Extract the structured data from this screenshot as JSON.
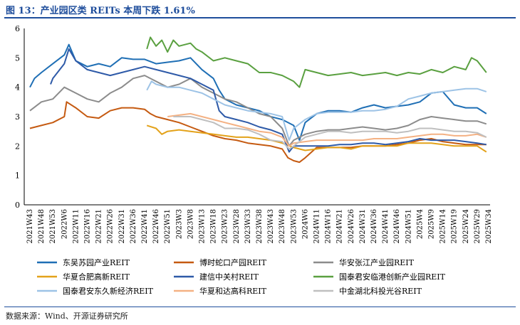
{
  "figure_label": "图 13：产业园区类 REITs 本周下跌 1.61%",
  "source_note": "数据来源：Wind、开源证券研究所",
  "chart_data": {
    "type": "line",
    "title": "图 13：产业园区类 REITs 本周下跌 1.61%",
    "xlabel": "",
    "ylabel": "",
    "ylim": [
      0,
      6
    ],
    "yticks": [
      0,
      1,
      2,
      3,
      4,
      5,
      6
    ],
    "grid": false,
    "legend_position": "bottom",
    "x_ticks": [
      "2021W43",
      "2021W48",
      "2021W53",
      "2022W6",
      "2022W11",
      "2022W16",
      "2022W21",
      "2022W26",
      "2022W31",
      "2022W36",
      "2022W41",
      "2022W46",
      "2022W51",
      "2023W3",
      "2023W8",
      "2023W13",
      "2023W18",
      "2023W23",
      "2023W28",
      "2023W33",
      "2023W38",
      "2023W43",
      "2023W48",
      "2023W53",
      "2024W6",
      "2024W11",
      "2024W16",
      "2024W21",
      "2024W26",
      "2024W31",
      "2024W36",
      "2024W41",
      "2024W46",
      "2024W51",
      "2025W4",
      "2025W9",
      "2025W14",
      "2025W19",
      "2025W24",
      "2025W29",
      "2025W34"
    ],
    "series": [
      {
        "name": "东吴苏园产业REIT",
        "color": "#1f6fb5",
        "x": [
          0,
          0.4,
          1,
          2,
          3,
          3.4,
          4,
          5,
          6,
          7,
          8,
          9,
          10,
          11,
          12,
          13,
          14,
          15,
          16,
          16.5,
          17,
          18,
          19,
          20,
          21,
          22,
          23,
          23.5,
          24,
          25,
          26,
          27,
          28,
          29,
          30,
          31,
          32,
          33,
          34,
          35,
          36,
          37,
          38,
          39,
          39.8
        ],
        "y": [
          4.0,
          4.3,
          4.5,
          4.8,
          5.1,
          5.45,
          4.9,
          4.7,
          4.8,
          4.7,
          5.0,
          4.95,
          4.95,
          4.8,
          4.85,
          4.9,
          5.0,
          4.6,
          4.3,
          3.9,
          3.6,
          3.4,
          3.3,
          3.2,
          3.0,
          2.9,
          2.7,
          2.2,
          2.8,
          3.1,
          3.2,
          3.2,
          3.15,
          3.3,
          3.4,
          3.3,
          3.35,
          3.4,
          3.5,
          3.8,
          3.85,
          3.4,
          3.3,
          3.3,
          3.1
        ]
      },
      {
        "name": "博时蛇口产园REIT",
        "color": "#c55a11",
        "x": [
          0,
          1,
          2,
          3,
          3.2,
          4,
          5,
          6,
          7,
          8,
          9,
          10,
          10.5,
          11,
          12,
          13,
          14,
          15,
          16,
          17,
          18,
          19,
          20,
          21,
          22,
          22.5,
          23,
          23.5,
          24,
          25,
          26,
          27,
          28,
          29,
          30,
          31,
          32,
          33,
          34,
          35,
          36,
          37,
          38,
          39,
          39.8
        ],
        "y": [
          2.6,
          2.7,
          2.8,
          3.0,
          3.5,
          3.3,
          3.0,
          2.95,
          3.2,
          3.3,
          3.3,
          3.25,
          3.1,
          3.0,
          2.9,
          2.8,
          2.65,
          2.5,
          2.35,
          2.25,
          2.2,
          2.1,
          2.05,
          2.0,
          1.9,
          1.6,
          1.5,
          1.45,
          1.6,
          1.95,
          1.95,
          1.95,
          1.95,
          2.0,
          2.0,
          2.0,
          2.05,
          2.1,
          2.2,
          2.25,
          2.15,
          2.1,
          2.05,
          2.05,
          2.05
        ]
      },
      {
        "name": "华安张江产业园REIT",
        "color": "#8c8c8c",
        "x": [
          0,
          1,
          2,
          3,
          4,
          5,
          6,
          7,
          8,
          9,
          10,
          11,
          12,
          13,
          14,
          15,
          16,
          17,
          18,
          19,
          20,
          21,
          22,
          22.6,
          23,
          24,
          25,
          26,
          27,
          28,
          29,
          30,
          31,
          32,
          33,
          34,
          35,
          36,
          37,
          38,
          39,
          39.8
        ],
        "y": [
          3.2,
          3.5,
          3.6,
          4.0,
          3.8,
          3.6,
          3.5,
          3.8,
          4.0,
          4.3,
          4.4,
          4.2,
          4.0,
          4.1,
          4.3,
          4.0,
          3.8,
          3.6,
          3.5,
          3.3,
          3.1,
          3.0,
          2.6,
          2.0,
          2.2,
          2.4,
          2.5,
          2.55,
          2.55,
          2.6,
          2.65,
          2.6,
          2.55,
          2.6,
          2.7,
          2.9,
          3.0,
          2.95,
          2.9,
          2.85,
          2.85,
          2.75
        ]
      },
      {
        "name": "华夏合肥高新REIT",
        "color": "#e3a21a",
        "x": [
          10.2,
          11,
          11.5,
          12,
          13,
          14,
          15,
          16,
          17,
          18,
          19,
          20,
          21,
          22,
          23,
          24,
          25,
          26,
          27,
          28,
          29,
          30,
          31,
          32,
          33,
          34,
          35,
          36,
          37,
          38,
          39,
          39.8
        ],
        "y": [
          2.7,
          2.6,
          2.4,
          2.5,
          2.55,
          2.5,
          2.45,
          2.4,
          2.35,
          2.3,
          2.3,
          2.25,
          2.2,
          2.1,
          1.95,
          1.85,
          1.9,
          1.95,
          1.95,
          1.9,
          2.0,
          2.0,
          2.0,
          2.0,
          2.1,
          2.1,
          2.1,
          2.05,
          2.0,
          2.0,
          2.0,
          1.8
        ]
      },
      {
        "name": "建信中关村REIT",
        "color": "#2e5aa8",
        "x": [
          1.8,
          2,
          3,
          3.4,
          4,
          5,
          6,
          7,
          8,
          9,
          10,
          11,
          12,
          13,
          14,
          15,
          16,
          16.5,
          17,
          18,
          19,
          20,
          21,
          22,
          22.6,
          23,
          24,
          25,
          26,
          27,
          28,
          29,
          30,
          31,
          32,
          33,
          34,
          35,
          36,
          37,
          38,
          39,
          39.8
        ],
        "y": [
          4.1,
          4.3,
          4.8,
          5.3,
          4.9,
          4.6,
          4.5,
          4.4,
          4.5,
          4.6,
          4.7,
          4.6,
          4.5,
          4.4,
          4.3,
          4.1,
          3.9,
          3.2,
          3.0,
          2.9,
          2.8,
          2.65,
          2.55,
          2.4,
          1.8,
          2.0,
          2.0,
          2.0,
          2.0,
          2.05,
          2.05,
          2.1,
          2.1,
          2.05,
          2.1,
          2.15,
          2.25,
          2.2,
          2.2,
          2.2,
          2.15,
          2.1,
          2.05
        ]
      },
      {
        "name": "国泰君安临港创新产业园REIT",
        "color": "#5aa040",
        "x": [
          10.2,
          10.5,
          11,
          11.5,
          12,
          12.5,
          13,
          14,
          14.5,
          15,
          16,
          17,
          18,
          19,
          20,
          21,
          22,
          23,
          23.5,
          24,
          25,
          26,
          27,
          28,
          29,
          30,
          31,
          32,
          33,
          34,
          35,
          36,
          37,
          38,
          38.5,
          39,
          39.8
        ],
        "y": [
          5.3,
          5.7,
          5.4,
          5.6,
          5.2,
          5.6,
          5.4,
          5.5,
          5.3,
          5.2,
          4.9,
          5.0,
          4.9,
          4.8,
          4.5,
          4.5,
          4.4,
          4.2,
          4.0,
          4.6,
          4.5,
          4.4,
          4.45,
          4.5,
          4.4,
          4.45,
          4.5,
          4.4,
          4.5,
          4.45,
          4.6,
          4.5,
          4.7,
          4.6,
          5.0,
          4.9,
          4.5
        ]
      },
      {
        "name": "国泰君安东久新经济REIT",
        "color": "#9dc3e6",
        "x": [
          10.2,
          10.6,
          11,
          12,
          13,
          14,
          15,
          16,
          17,
          18,
          19,
          20,
          21,
          22,
          22.6,
          23,
          24,
          25,
          26,
          27,
          28,
          29,
          30,
          31,
          32,
          33,
          34,
          35,
          36,
          37,
          38,
          39,
          39.8
        ],
        "y": [
          3.9,
          4.2,
          4.1,
          4.0,
          4.0,
          3.9,
          3.8,
          3.6,
          3.4,
          3.3,
          3.2,
          3.15,
          3.1,
          3.0,
          2.2,
          2.6,
          2.9,
          3.1,
          3.15,
          3.15,
          3.15,
          3.2,
          3.2,
          3.25,
          3.35,
          3.6,
          3.7,
          3.8,
          3.85,
          3.9,
          3.95,
          3.95,
          3.85
        ]
      },
      {
        "name": "华夏和达高科REIT",
        "color": "#f4b183",
        "x": [
          12,
          13,
          14,
          15,
          16,
          17,
          18,
          19,
          20,
          21,
          22,
          22.6,
          23,
          24,
          25,
          26,
          27,
          28,
          29,
          30,
          31,
          32,
          33,
          34,
          35,
          36,
          37,
          38,
          39,
          39.8
        ],
        "y": [
          3.0,
          3.05,
          3.1,
          3.0,
          2.9,
          2.8,
          2.7,
          2.6,
          2.5,
          2.45,
          2.3,
          2.0,
          2.1,
          2.15,
          2.2,
          2.2,
          2.2,
          2.2,
          2.2,
          2.25,
          2.25,
          2.25,
          2.3,
          2.35,
          2.4,
          2.4,
          2.35,
          2.35,
          2.4,
          2.3
        ]
      },
      {
        "name": "中金湖北科投光谷REIT",
        "color": "#bfbfbf",
        "x": [
          12.5,
          13,
          14,
          15,
          16,
          17,
          18,
          19,
          20,
          21,
          22,
          22.6,
          23,
          24,
          25,
          26,
          27,
          28,
          29,
          30,
          31,
          32,
          33,
          34,
          35,
          36,
          37,
          38,
          39,
          39.8
        ],
        "y": [
          3.0,
          3.0,
          3.0,
          2.9,
          2.8,
          2.6,
          2.6,
          2.55,
          2.4,
          2.2,
          2.15,
          1.9,
          2.0,
          2.3,
          2.4,
          2.5,
          2.5,
          2.45,
          2.5,
          2.5,
          2.5,
          2.45,
          2.5,
          2.6,
          2.6,
          2.55,
          2.5,
          2.5,
          2.45,
          2.3
        ]
      }
    ]
  }
}
